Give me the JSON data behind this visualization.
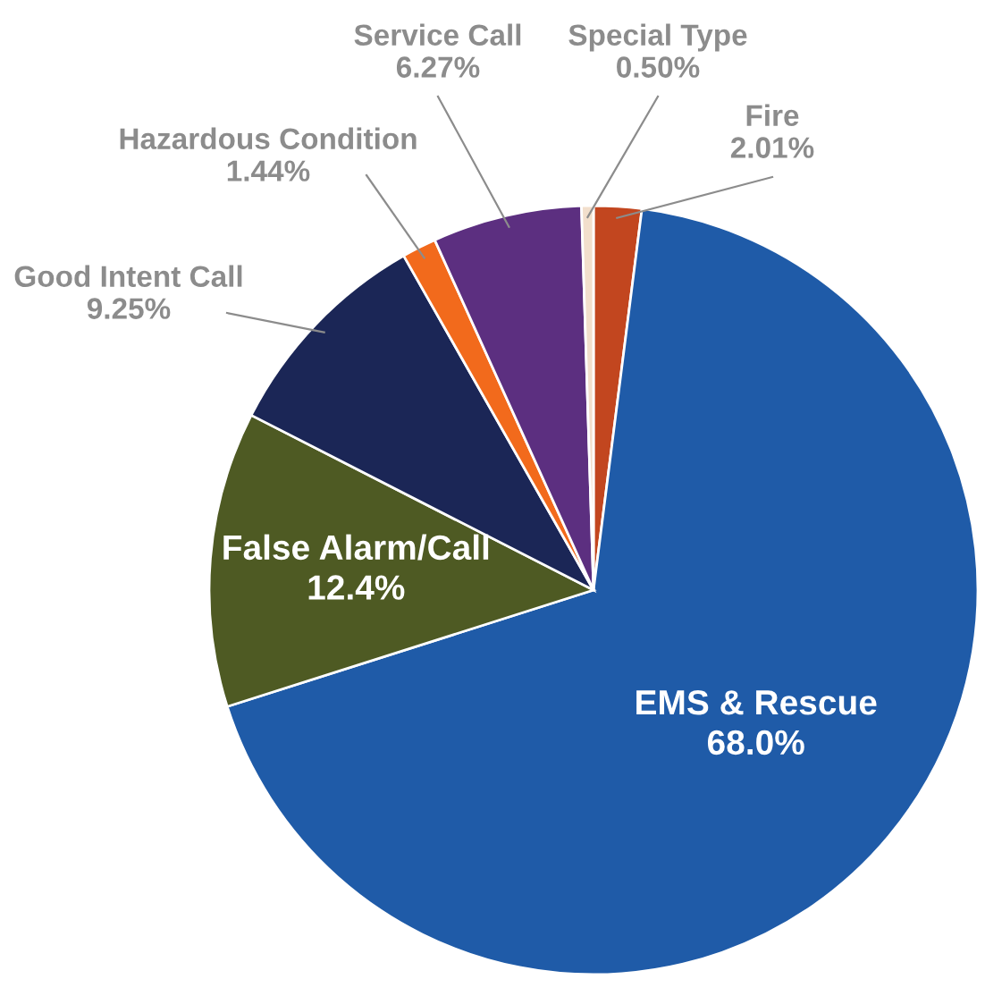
{
  "chart_data": {
    "type": "pie",
    "categories": [
      "Fire",
      "EMS & Rescue",
      "False Alarm/Call",
      "Good Intent Call",
      "Hazardous Condition",
      "Service Call",
      "Special Type"
    ],
    "values": [
      2.01,
      68.0,
      12.4,
      9.25,
      1.44,
      6.27,
      0.5
    ],
    "value_labels": [
      "2.01%",
      "68.0%",
      "12.4%",
      "9.25%",
      "1.44%",
      "6.27%",
      "0.50%"
    ],
    "colors": [
      "#c2461f",
      "#1f5ba8",
      "#4e5a23",
      "#1b2656",
      "#f26a1c",
      "#5c2f80",
      "#f2dfcc"
    ]
  }
}
